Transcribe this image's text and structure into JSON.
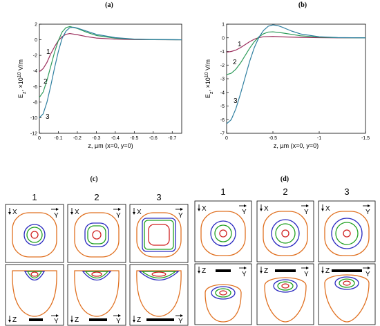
{
  "panel_labels": [
    "(a)",
    "(b)",
    "(c)",
    "(d)"
  ],
  "colors": {
    "1": "#9b2d5c",
    "2": "#2e9b5a",
    "3": "#2f7fa0",
    "orange": "#e07020",
    "blue": "#2a2ac0",
    "green": "#20a020",
    "red": "#d02020"
  },
  "chart_data": [
    {
      "type": "line",
      "title": "(a)",
      "xlabel": "z, µm   (x=0, y=0)",
      "ylabel_main": "E",
      "ylabel_sub": "z",
      "ylabel_rest": ", ×10",
      "ylabel_exp": "10",
      "ylabel_unit": " V/m",
      "xlim": [
        0,
        -0.75
      ],
      "ylim": [
        -12,
        2
      ],
      "xticks": [
        0,
        -0.1,
        -0.2,
        -0.3,
        -0.4,
        -0.5,
        -0.6,
        -0.7
      ],
      "xtick_labels": [
        "0",
        "-0.1",
        "-0.2",
        "-0.3",
        "-0.4",
        "-0.5",
        "-0.6",
        "-0.7"
      ],
      "yticks": [
        2,
        0,
        -2,
        -4,
        -6,
        -8,
        -10,
        -12
      ],
      "ytick_labels": [
        "2",
        "0",
        "-2",
        "-4",
        "-6",
        "-8",
        "-10",
        "-12"
      ],
      "series": [
        {
          "name": "1",
          "x": [
            0,
            -0.02,
            -0.04,
            -0.06,
            -0.08,
            -0.1,
            -0.12,
            -0.14,
            -0.16,
            -0.2,
            -0.25,
            -0.3,
            -0.4,
            -0.5,
            -0.6,
            -0.75
          ],
          "y": [
            -4.1,
            -3.7,
            -2.9,
            -1.8,
            -0.9,
            -0.1,
            0.4,
            0.7,
            0.8,
            0.65,
            0.4,
            0.22,
            0.08,
            0.03,
            0.01,
            0
          ]
        },
        {
          "name": "2",
          "x": [
            0,
            -0.02,
            -0.04,
            -0.06,
            -0.08,
            -0.1,
            -0.12,
            -0.14,
            -0.16,
            -0.2,
            -0.25,
            -0.3,
            -0.4,
            -0.5,
            -0.6,
            -0.75
          ],
          "y": [
            -7.4,
            -6.7,
            -5.2,
            -3.4,
            -1.6,
            -0.1,
            1.0,
            1.55,
            1.7,
            1.45,
            0.95,
            0.55,
            0.2,
            0.07,
            0.02,
            0
          ]
        },
        {
          "name": "3",
          "x": [
            0,
            -0.02,
            -0.04,
            -0.06,
            -0.08,
            -0.1,
            -0.12,
            -0.14,
            -0.16,
            -0.18,
            -0.2,
            -0.25,
            -0.3,
            -0.4,
            -0.5,
            -0.6,
            -0.75
          ],
          "y": [
            -10.0,
            -9.5,
            -8.0,
            -5.9,
            -3.6,
            -1.5,
            0.2,
            1.1,
            1.55,
            1.6,
            1.5,
            1.1,
            0.7,
            0.27,
            0.09,
            0.03,
            0
          ]
        }
      ],
      "curve_labels": [
        "1",
        "2",
        "3"
      ]
    },
    {
      "type": "line",
      "title": "(b)",
      "xlabel": "z, µm   (x=0, y=0)",
      "ylabel_main": "E",
      "ylabel_sub": "z",
      "ylabel_rest": ", ×10",
      "ylabel_exp": "10",
      "ylabel_unit": " V/m",
      "xlim": [
        0,
        -1.5
      ],
      "ylim": [
        -7,
        1
      ],
      "xticks": [
        0,
        -0.5,
        -1,
        -1.5
      ],
      "xtick_labels": [
        "0",
        "-0.5",
        "-1",
        "-1.5"
      ],
      "yticks": [
        1,
        0,
        -1,
        -2,
        -3,
        -4,
        -5,
        -6,
        -7
      ],
      "ytick_labels": [
        "1",
        "0",
        "-1",
        "-2",
        "-3",
        "-4",
        "-5",
        "-6",
        "-7"
      ],
      "series": [
        {
          "name": "1",
          "x": [
            0,
            -0.05,
            -0.1,
            -0.15,
            -0.2,
            -0.25,
            -0.3,
            -0.35,
            -0.4,
            -0.5,
            -0.6,
            -0.8,
            -1.0,
            -1.2,
            -1.5
          ],
          "y": [
            -1.05,
            -1.0,
            -0.9,
            -0.72,
            -0.5,
            -0.28,
            -0.1,
            0.02,
            0.08,
            0.1,
            0.07,
            0.03,
            0.01,
            0,
            0
          ]
        },
        {
          "name": "2",
          "x": [
            0,
            -0.05,
            -0.1,
            -0.15,
            -0.2,
            -0.25,
            -0.3,
            -0.35,
            -0.4,
            -0.45,
            -0.5,
            -0.6,
            -0.8,
            -1.0,
            -1.2,
            -1.5
          ],
          "y": [
            -2.7,
            -2.6,
            -2.3,
            -1.85,
            -1.3,
            -0.75,
            -0.28,
            0.08,
            0.3,
            0.42,
            0.44,
            0.36,
            0.15,
            0.05,
            0.01,
            0
          ]
        },
        {
          "name": "3",
          "x": [
            0,
            -0.05,
            -0.1,
            -0.15,
            -0.2,
            -0.25,
            -0.3,
            -0.35,
            -0.4,
            -0.45,
            -0.5,
            -0.55,
            -0.6,
            -0.7,
            -0.8,
            -1.0,
            -1.2,
            -1.5
          ],
          "y": [
            -6.3,
            -6.0,
            -5.2,
            -4.1,
            -2.9,
            -1.7,
            -0.7,
            0.05,
            0.55,
            0.85,
            0.95,
            0.9,
            0.78,
            0.5,
            0.28,
            0.08,
            0.02,
            0
          ]
        }
      ],
      "curve_labels": [
        "1",
        "2",
        "3"
      ]
    }
  ],
  "contours": {
    "col_numbers": [
      "1",
      "2",
      "3"
    ],
    "x_letter": "X",
    "y_letter": "Y",
    "z_letter": "Z"
  }
}
